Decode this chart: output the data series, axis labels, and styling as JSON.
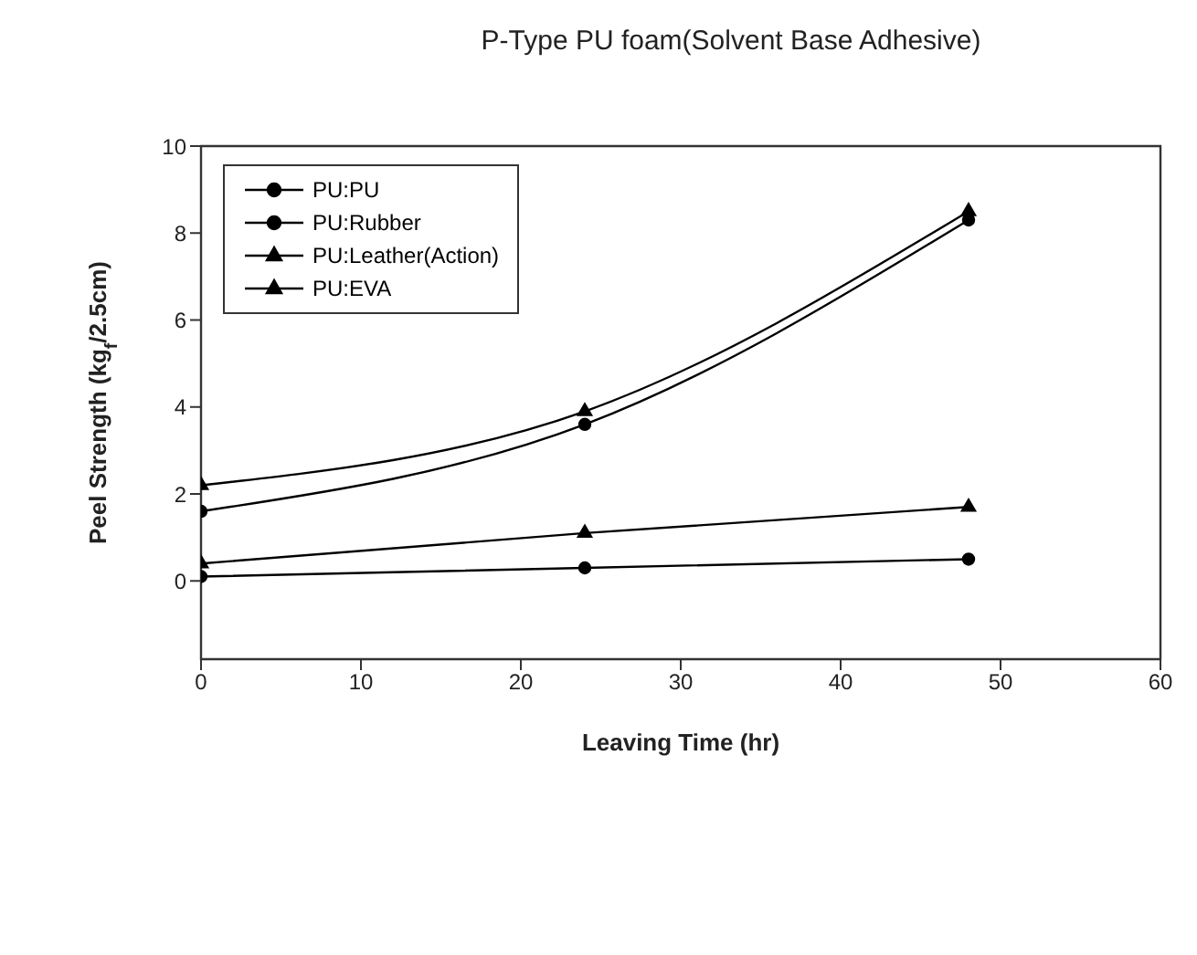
{
  "chart_data": {
    "type": "line",
    "title": "P-Type PU foam(Solvent Base Adhesive)",
    "xlabel": "Leaving Time (hr)",
    "ylabel": "Peel Strength (kg$_{f}$/2.5cm)",
    "x": [
      0,
      24,
      48
    ],
    "series": [
      {
        "name": "PU:PU",
        "color": "#000000",
        "marker": "circle",
        "values": [
          1.6,
          3.6,
          8.3
        ]
      },
      {
        "name": "PU:Rubber",
        "color": "#000000",
        "marker": "circle",
        "values": [
          0.1,
          0.3,
          0.5
        ]
      },
      {
        "name": "PU:Leather(Action)",
        "color": "#000000",
        "marker": "triangle",
        "values": [
          2.2,
          3.9,
          8.5
        ]
      },
      {
        "name": "PU:EVA",
        "color": "#000000",
        "marker": "triangle",
        "values": [
          0.4,
          1.1,
          1.7
        ]
      }
    ],
    "xlim": [
      0,
      60
    ],
    "xticks": [
      0,
      10,
      20,
      30,
      40,
      50,
      60
    ],
    "ylim": [
      -1.8,
      10
    ],
    "yticks": [
      0,
      2,
      4,
      6,
      8,
      10
    ],
    "grid": false,
    "legend": "top left",
    "line_style": "solid"
  }
}
